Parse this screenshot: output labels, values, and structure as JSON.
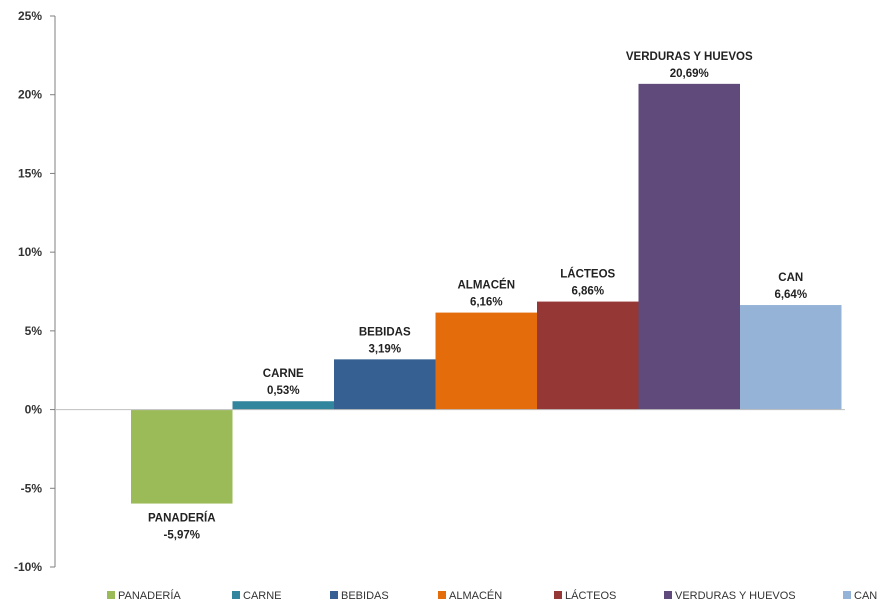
{
  "chart_data": {
    "type": "bar",
    "categories": [
      "PANADERÍA",
      "CARNE",
      "BEBIDAS",
      "ALMACÉN",
      "LÁCTEOS",
      "VERDURAS Y HUEVOS",
      "CAN"
    ],
    "values": [
      -5.97,
      0.53,
      3.19,
      6.16,
      6.86,
      20.69,
      6.64
    ],
    "value_labels": [
      "-5,97%",
      "0,53%",
      "3,19%",
      "6,16%",
      "6,86%",
      "20,69%",
      "6,64%"
    ],
    "colors": [
      "#9bbb59",
      "#31859c",
      "#366092",
      "#e46c0a",
      "#953735",
      "#604a7b",
      "#95b3d7"
    ],
    "ylim": [
      -10,
      25
    ],
    "yticks": [
      -10,
      -5,
      0,
      5,
      10,
      15,
      20,
      25
    ],
    "ytick_labels": [
      "-10%",
      "-5%",
      "0%",
      "5%",
      "10%",
      "15%",
      "20%",
      "25%"
    ],
    "title": "",
    "xlabel": "",
    "ylabel": "",
    "grid": false,
    "legend_position": "bottom"
  }
}
